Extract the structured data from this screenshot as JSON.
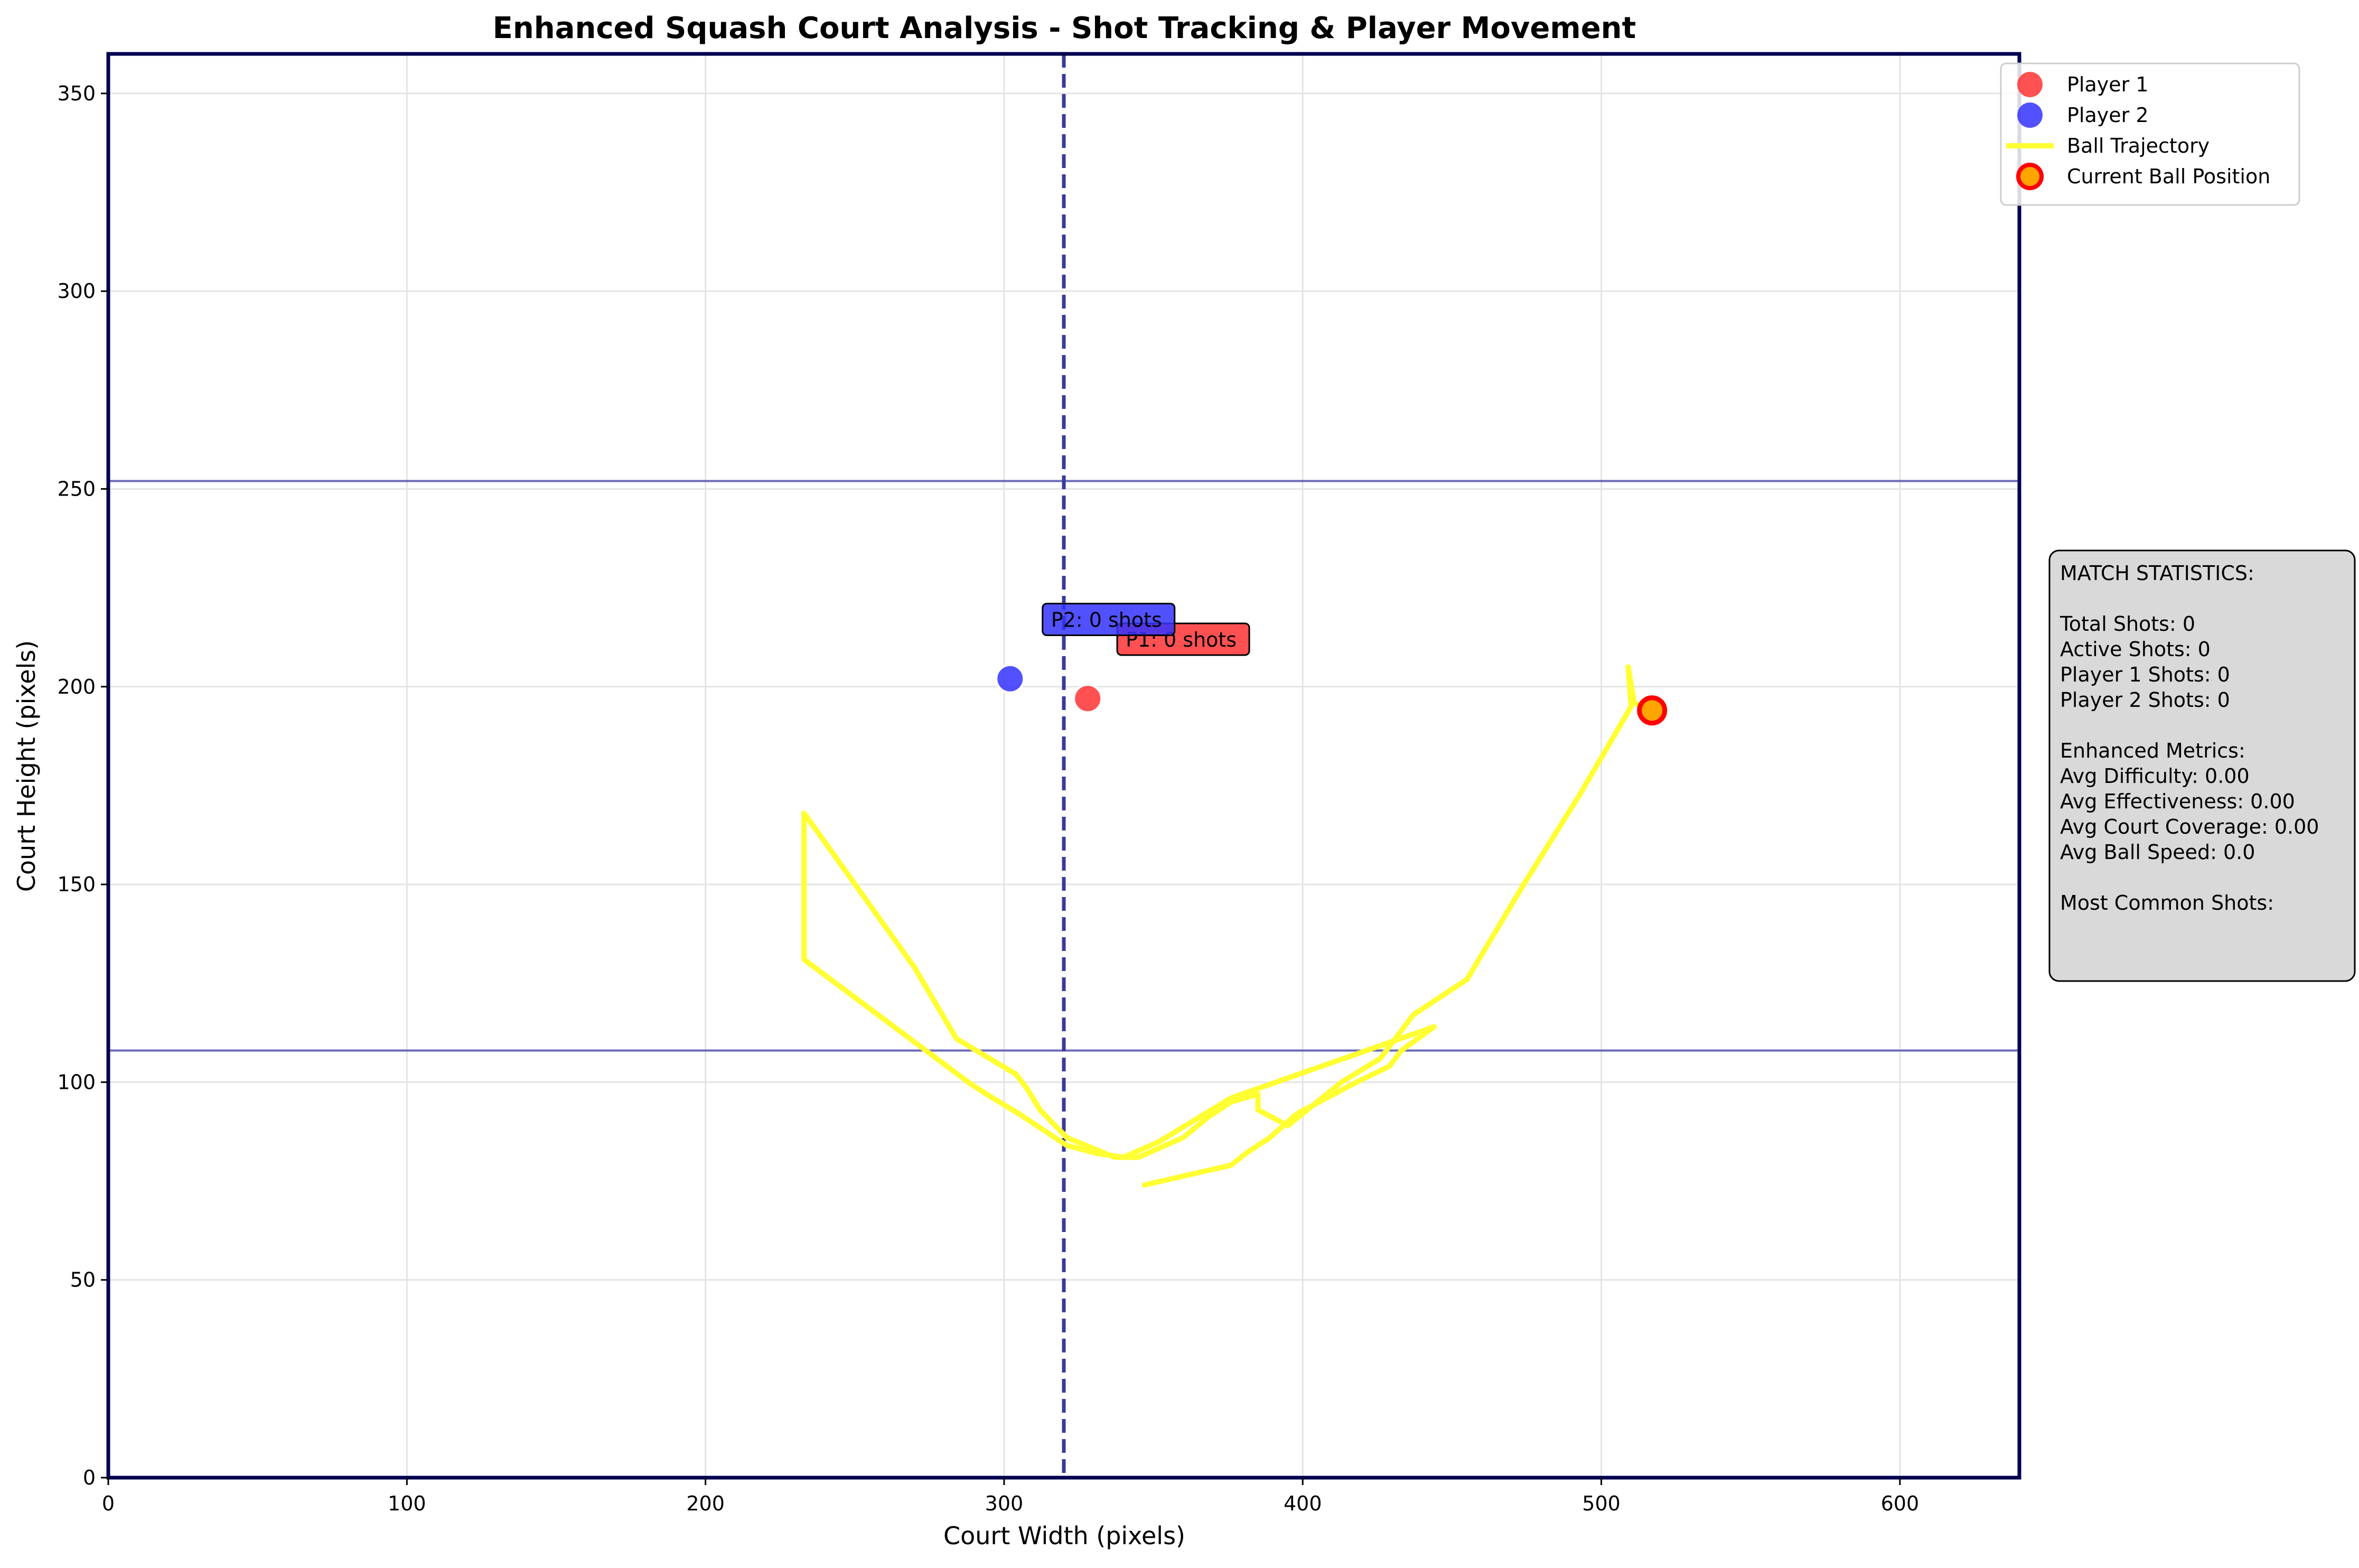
{
  "colors": {
    "court_border": "#000050",
    "service_line": "#6b6bb8",
    "half_line": "#3a3a9a",
    "grid": "#e4e4e4",
    "player1": "#ff3333",
    "player2": "#3333ff",
    "trajectory": "#ffff33",
    "ball_fill": "#ffa500",
    "ball_edge": "#ff0000",
    "stats_bg": "#d9d9d9"
  },
  "chart_data": {
    "type": "scatter",
    "title": "Enhanced Squash Court Analysis - Shot Tracking & Player Movement",
    "xlabel": "Court Width (pixels)",
    "ylabel": "Court Height (pixels)",
    "xlim": [
      0,
      640
    ],
    "ylim": [
      0,
      360
    ],
    "x_ticks": [
      0,
      100,
      200,
      300,
      400,
      500,
      600
    ],
    "y_ticks": [
      0,
      50,
      100,
      150,
      200,
      250,
      300,
      350
    ],
    "grid": true,
    "legend_position": "top-right",
    "legend": [
      {
        "label": "Player 1",
        "marker": "circle",
        "color": "#ff3333"
      },
      {
        "label": "Player 2",
        "marker": "circle",
        "color": "#3333ff"
      },
      {
        "label": "Ball Trajectory",
        "marker": "line",
        "color": "#ffff33"
      },
      {
        "label": "Current Ball Position",
        "marker": "ball",
        "color": "#ffa500"
      }
    ],
    "court_lines": {
      "half_court_x": 320,
      "service_lines_y": [
        108,
        252
      ]
    },
    "players": [
      {
        "name": "Player 1",
        "x": 328,
        "y": 197,
        "annotation": "P1: 0 shots",
        "ann_x": 340,
        "ann_y": 212
      },
      {
        "name": "Player 2",
        "x": 302,
        "y": 202,
        "annotation": "P2: 0 shots",
        "ann_x": 315,
        "ann_y": 217
      }
    ],
    "ball_trajectory": {
      "x": [
        347,
        376,
        381,
        389,
        398,
        418,
        429,
        433,
        444,
        376,
        352,
        340,
        331,
        321,
        317,
        309,
        305,
        294,
        288,
        233,
        233,
        234,
        270,
        284,
        304,
        308,
        312,
        321,
        337,
        345,
        360,
        368,
        376,
        385,
        385,
        395,
        413,
        426,
        437,
        455,
        474,
        493,
        510,
        509,
        511,
        518
      ],
      "y": [
        74,
        79,
        82,
        86,
        92,
        100,
        104,
        108,
        114,
        96,
        85,
        81,
        82,
        84,
        86,
        90,
        92,
        97,
        100,
        131,
        168,
        167,
        129,
        111,
        102,
        98,
        93,
        86,
        81,
        81,
        86,
        91,
        95,
        97,
        93,
        89,
        100,
        106,
        117,
        126,
        150,
        173,
        195,
        205,
        196,
        193
      ]
    },
    "current_ball_position": {
      "x": 517,
      "y": 194
    }
  },
  "stats_box": {
    "lines": [
      "MATCH STATISTICS:",
      "",
      "Total Shots: 0",
      "Active Shots: 0",
      "Player 1 Shots: 0",
      "Player 2 Shots: 0",
      "",
      "Enhanced Metrics:",
      "Avg Difficulty: 0.00",
      "Avg Effectiveness: 0.00",
      "Avg Court Coverage: 0.00",
      "Avg Ball Speed: 0.0",
      "",
      "Most Common Shots:"
    ]
  }
}
